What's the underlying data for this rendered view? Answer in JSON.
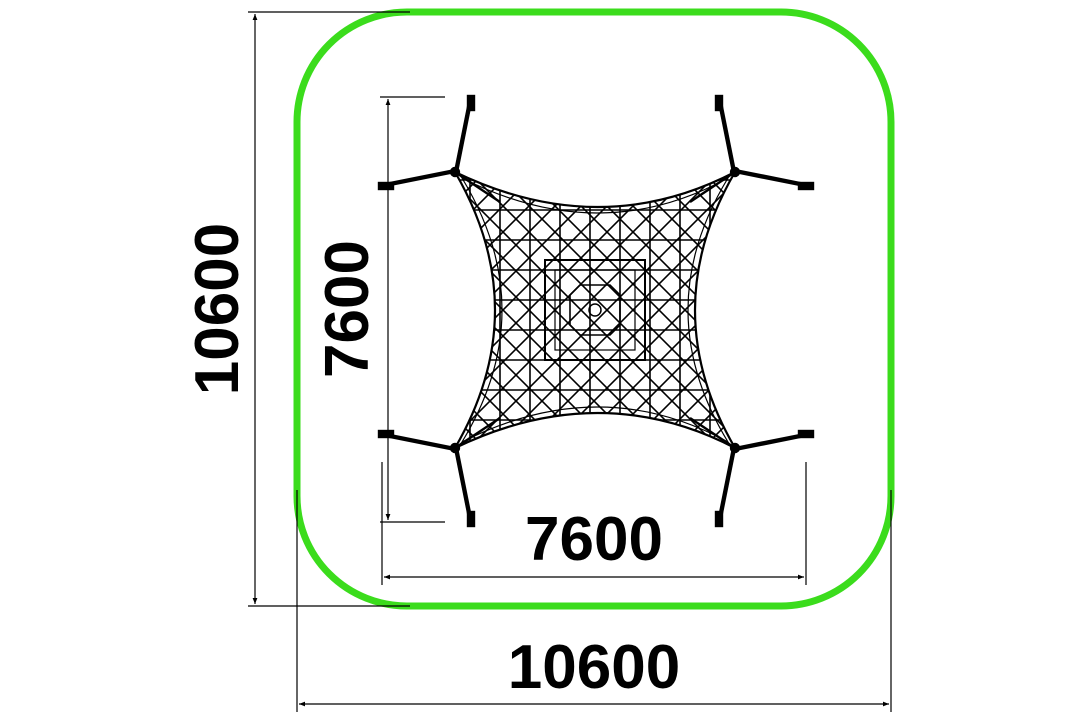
{
  "dimensions": {
    "outer_width_label": "10600",
    "outer_height_label": "10600",
    "inner_width_label": "7600",
    "inner_height_label": "7600"
  },
  "colors": {
    "safety_zone": "#3bdc1c",
    "lines": "#000000",
    "background": "#ffffff"
  },
  "icons": {
    "net": "spider-net-icon",
    "anchor": "ground-anchor-icon"
  }
}
